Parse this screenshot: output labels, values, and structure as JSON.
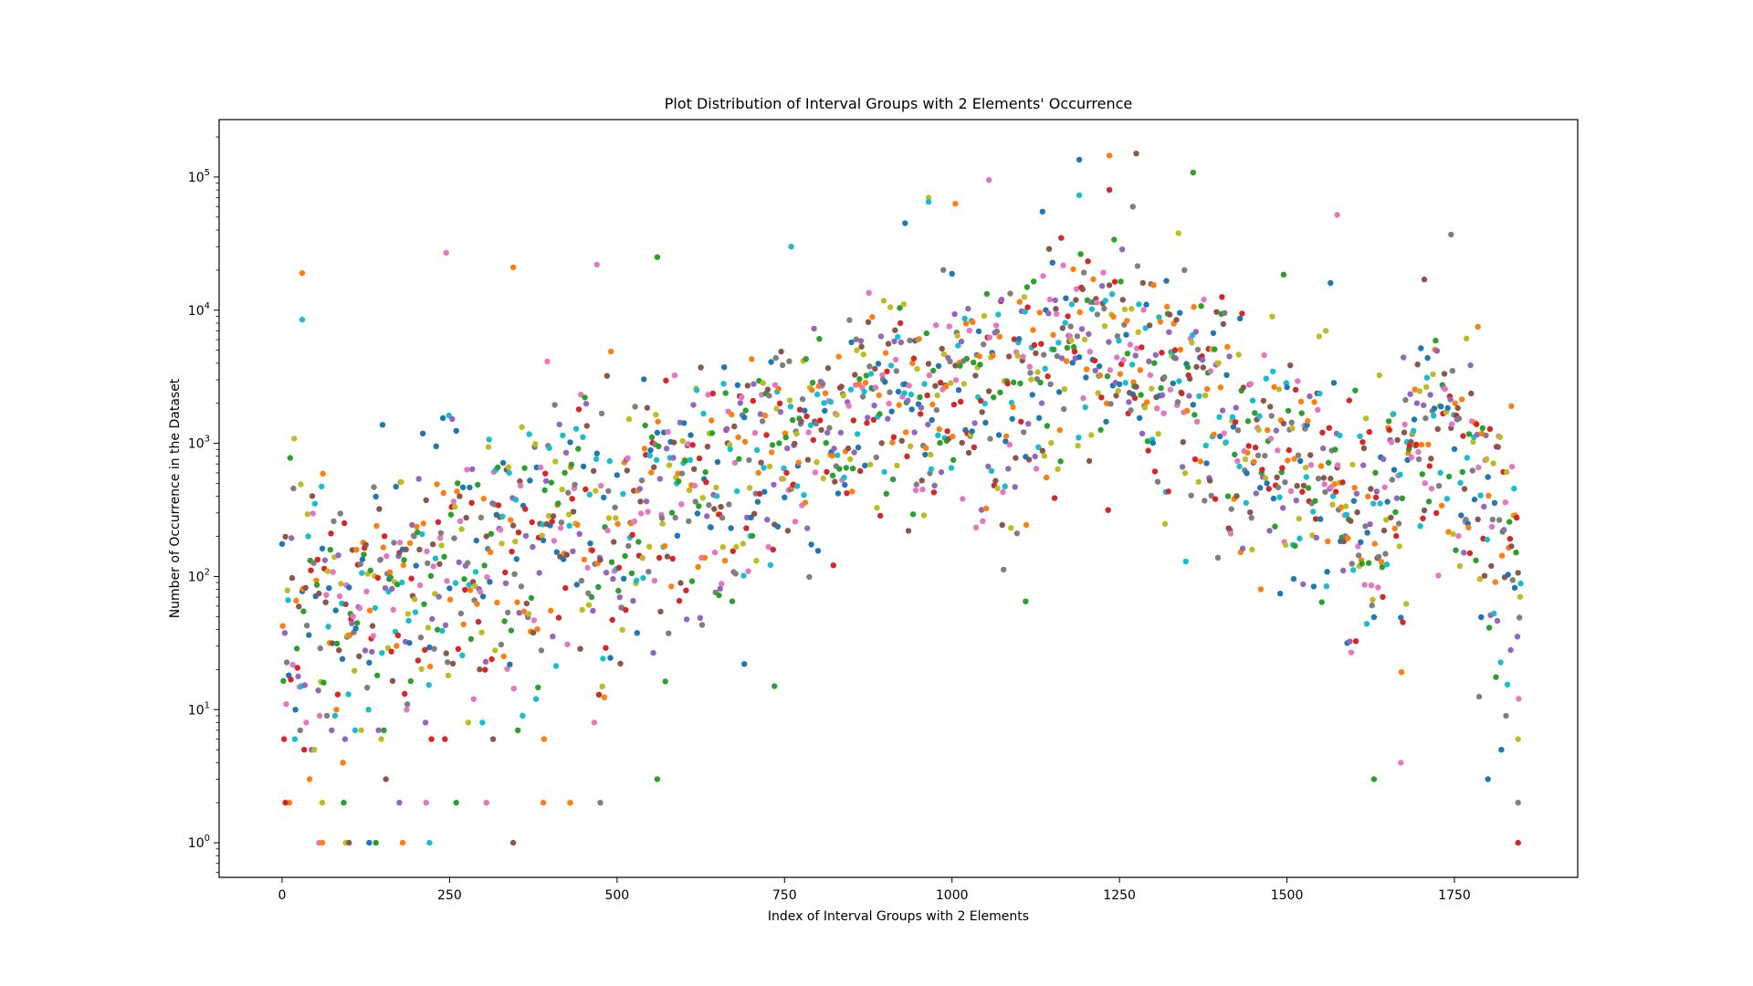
{
  "chart_data": {
    "type": "scatter",
    "title": "Plot Distribution of Interval Groups with 2 Elements' Occurrence",
    "xlabel": "Index of Interval Groups with 2 Elements",
    "ylabel": "Number of Occurrence in the Dataset",
    "yscale": "log",
    "xlim": [
      -94,
      1934
    ],
    "ylim": [
      0.55,
      270000
    ],
    "x_ticks": [
      0,
      250,
      500,
      750,
      1000,
      1250,
      1500,
      1750
    ],
    "x_tick_labels": [
      "0",
      "250",
      "500",
      "750",
      "1000",
      "1250",
      "1500",
      "1750"
    ],
    "y_ticks": [
      1,
      10,
      100,
      1000,
      10000,
      100000
    ],
    "y_tick_labels": [
      {
        "base": "10",
        "exp": "0"
      },
      {
        "base": "10",
        "exp": "1"
      },
      {
        "base": "10",
        "exp": "2"
      },
      {
        "base": "10",
        "exp": "3"
      },
      {
        "base": "10",
        "exp": "4"
      },
      {
        "base": "10",
        "exp": "5"
      }
    ],
    "grid": false,
    "legend": null,
    "n_points_approx": 1850,
    "color_cycle": [
      "#1f77b4",
      "#ff7f0e",
      "#2ca02c",
      "#d62728",
      "#9467bd",
      "#8c564b",
      "#e377c2",
      "#7f7f7f",
      "#bcbd22",
      "#17becf"
    ],
    "trend_envelope": {
      "description": "Log-median occurrence by index bucket (approx.)",
      "x": [
        0,
        100,
        200,
        300,
        400,
        500,
        600,
        700,
        800,
        900,
        1000,
        1100,
        1200,
        1300,
        1400,
        1500,
        1550,
        1600,
        1650,
        1700,
        1750,
        1800,
        1850
      ],
      "median": [
        30,
        60,
        100,
        120,
        200,
        300,
        600,
        900,
        1500,
        2500,
        3000,
        4000,
        6000,
        4000,
        2500,
        500,
        800,
        200,
        500,
        1500,
        1500,
        400,
        100
      ],
      "low": [
        1,
        1,
        1,
        2,
        2,
        3,
        5,
        15,
        60,
        100,
        80,
        65,
        250,
        140,
        40,
        20,
        15,
        3,
        4,
        14,
        15,
        3,
        1
      ],
      "high": [
        19000,
        5500,
        27000,
        21000,
        19000,
        25000,
        15000,
        23000,
        36000,
        60000,
        95000,
        55000,
        140000,
        150000,
        110000,
        18000,
        52000,
        16000,
        17000,
        12000,
        37000,
        7500,
        2000
      ]
    },
    "notable_points": [
      {
        "x": 1190,
        "y": 135000,
        "color": "#1f77b4"
      },
      {
        "x": 1235,
        "y": 145000,
        "color": "#ff7f0e"
      },
      {
        "x": 1275,
        "y": 150000,
        "color": "#8c564b"
      },
      {
        "x": 1360,
        "y": 108000,
        "color": "#2ca02c"
      },
      {
        "x": 1055,
        "y": 95000,
        "color": "#e377c2"
      },
      {
        "x": 1235,
        "y": 80000,
        "color": "#d62728"
      },
      {
        "x": 1190,
        "y": 73000,
        "color": "#17becf"
      },
      {
        "x": 965,
        "y": 70000,
        "color": "#bcbd22"
      },
      {
        "x": 965,
        "y": 65000,
        "color": "#17becf"
      },
      {
        "x": 1005,
        "y": 63000,
        "color": "#ff7f0e"
      },
      {
        "x": 1270,
        "y": 60000,
        "color": "#7f7f7f"
      },
      {
        "x": 1135,
        "y": 55000,
        "color": "#1f77b4"
      },
      {
        "x": 1575,
        "y": 52000,
        "color": "#e377c2"
      },
      {
        "x": 930,
        "y": 45000,
        "color": "#1f77b4"
      },
      {
        "x": 1745,
        "y": 37000,
        "color": "#7f7f7f"
      },
      {
        "x": 760,
        "y": 30000,
        "color": "#17becf"
      },
      {
        "x": 245,
        "y": 27000,
        "color": "#e377c2"
      },
      {
        "x": 560,
        "y": 25000,
        "color": "#2ca02c"
      },
      {
        "x": 470,
        "y": 22000,
        "color": "#e377c2"
      },
      {
        "x": 345,
        "y": 21000,
        "color": "#ff7f0e"
      },
      {
        "x": 30,
        "y": 19000,
        "color": "#ff7f0e"
      },
      {
        "x": 1495,
        "y": 18500,
        "color": "#2ca02c"
      },
      {
        "x": 1705,
        "y": 17000,
        "color": "#8c564b"
      },
      {
        "x": 1565,
        "y": 16000,
        "color": "#1f77b4"
      },
      {
        "x": 30,
        "y": 8500,
        "color": "#17becf"
      },
      {
        "x": 1785,
        "y": 7500,
        "color": "#ff7f0e"
      },
      {
        "x": 1835,
        "y": 1900,
        "color": "#ff7f0e"
      },
      {
        "x": 1110,
        "y": 65,
        "color": "#2ca02c"
      },
      {
        "x": 735,
        "y": 15,
        "color": "#2ca02c"
      },
      {
        "x": 690,
        "y": 22,
        "color": "#1f77b4"
      },
      {
        "x": 1630,
        "y": 3,
        "color": "#2ca02c"
      },
      {
        "x": 1670,
        "y": 4,
        "color": "#e377c2"
      },
      {
        "x": 1800,
        "y": 3,
        "color": "#1f77b4"
      },
      {
        "x": 1845,
        "y": 6,
        "color": "#bcbd22"
      },
      {
        "x": 1845,
        "y": 2,
        "color": "#7f7f7f"
      },
      {
        "x": 1845,
        "y": 1,
        "color": "#d62728"
      },
      {
        "x": 5,
        "y": 2,
        "color": "#d62728"
      },
      {
        "x": 55,
        "y": 1,
        "color": "#e377c2"
      },
      {
        "x": 60,
        "y": 1,
        "color": "#ff7f0e"
      },
      {
        "x": 95,
        "y": 1,
        "color": "#bcbd22"
      },
      {
        "x": 100,
        "y": 1,
        "color": "#8c564b"
      },
      {
        "x": 130,
        "y": 1,
        "color": "#1f77b4"
      },
      {
        "x": 140,
        "y": 1,
        "color": "#2ca02c"
      },
      {
        "x": 180,
        "y": 1,
        "color": "#ff7f0e"
      },
      {
        "x": 220,
        "y": 1,
        "color": "#17becf"
      },
      {
        "x": 345,
        "y": 1,
        "color": "#8c564b"
      },
      {
        "x": 560,
        "y": 3,
        "color": "#2ca02c"
      },
      {
        "x": 390,
        "y": 2,
        "color": "#ff7f0e"
      },
      {
        "x": 430,
        "y": 2,
        "color": "#ff7f0e"
      },
      {
        "x": 475,
        "y": 2,
        "color": "#7f7f7f"
      },
      {
        "x": 260,
        "y": 2,
        "color": "#2ca02c"
      },
      {
        "x": 305,
        "y": 2,
        "color": "#e377c2"
      },
      {
        "x": 215,
        "y": 2,
        "color": "#e377c2"
      },
      {
        "x": 175,
        "y": 2,
        "color": "#9467bd"
      },
      {
        "x": 60,
        "y": 2,
        "color": "#bcbd22"
      }
    ]
  },
  "generator": {
    "seed": 20240611,
    "count": 1850,
    "marker_radius": 3.2
  }
}
